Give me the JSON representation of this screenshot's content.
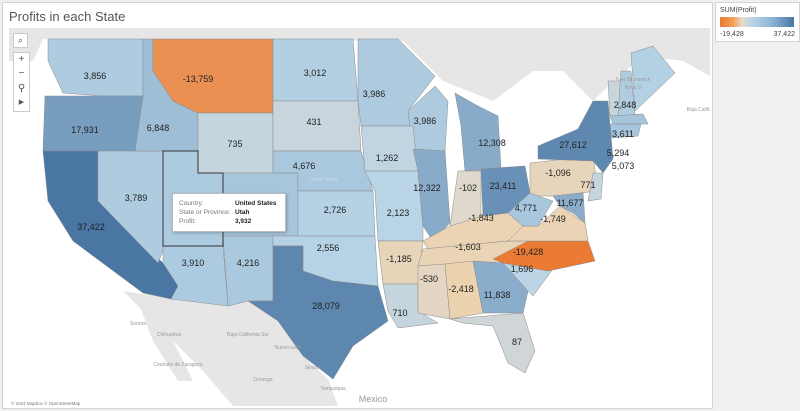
{
  "title": "Profits in each State",
  "legend": {
    "title": "SUM(Profit)",
    "min_label": "-19,428",
    "max_label": "37,422",
    "min": -19428,
    "max": 37422,
    "colors": {
      "negative": "#ea7a34",
      "neutral": "#dcd9d3",
      "positive": "#4a76a4"
    }
  },
  "toolbar": {
    "search_icon": "search-icon",
    "zoom_in": "+",
    "zoom_out": "−",
    "pin_icon": "pin-icon",
    "arrow_icon": "play-arrow-icon"
  },
  "tooltip": {
    "rows": [
      {
        "key": "Country:",
        "value": "United States"
      },
      {
        "key": "State or Province:",
        "value": "Utah"
      },
      {
        "key": "Profit:",
        "value": "3,932"
      }
    ]
  },
  "basemap_labels": [
    "New Brunswick",
    "Nova S",
    "Baja California",
    "Sonora",
    "Chihuahua",
    "Baja California Sur",
    "Coahuila de Zaragoza",
    "Nuevo León",
    "Sinaloa",
    "Durango",
    "Tamaulipas",
    "Mexico",
    "United States"
  ],
  "attribution": "© 2024 Mapbox © OpenStreetMap",
  "map": {
    "states": [
      {
        "state": "Washington",
        "profit": 3856,
        "label": "3,856"
      },
      {
        "state": "Oregon",
        "profit": 17931,
        "label": "17,931"
      },
      {
        "state": "California",
        "profit": 37422,
        "label": "37,422"
      },
      {
        "state": "Nevada",
        "profit": 3789,
        "label": "3,789"
      },
      {
        "state": "Idaho",
        "profit": 6848,
        "label": "6,848"
      },
      {
        "state": "Montana",
        "profit": -13759,
        "label": "-13,759"
      },
      {
        "state": "Wyoming",
        "profit": 735,
        "label": "735"
      },
      {
        "state": "Utah",
        "profit": 3932,
        "label": ""
      },
      {
        "state": "Colorado",
        "profit": 5000,
        "label": ""
      },
      {
        "state": "Arizona",
        "profit": 3910,
        "label": "3,910"
      },
      {
        "state": "New Mexico",
        "profit": 4216,
        "label": "4,216"
      },
      {
        "state": "North Dakota",
        "profit": 3012,
        "label": "3,012"
      },
      {
        "state": "South Dakota",
        "profit": 431,
        "label": "431"
      },
      {
        "state": "Nebraska",
        "profit": 4676,
        "label": "4,676"
      },
      {
        "state": "Kansas",
        "profit": 2726,
        "label": "2,726"
      },
      {
        "state": "Oklahoma",
        "profit": 2556,
        "label": "2,556"
      },
      {
        "state": "Texas",
        "profit": 28079,
        "label": "28,079"
      },
      {
        "state": "Minnesota",
        "profit": 3986,
        "label": "3,986"
      },
      {
        "state": "Wisconsin",
        "profit": 3986,
        "label": "3,986"
      },
      {
        "state": "Iowa",
        "profit": 1262,
        "label": "1,262"
      },
      {
        "state": "Missouri",
        "profit": 2123,
        "label": "2,123"
      },
      {
        "state": "Arkansas",
        "profit": -1185,
        "label": "-1,185"
      },
      {
        "state": "Louisiana",
        "profit": 710,
        "label": "710"
      },
      {
        "state": "Illinois",
        "profit": 12322,
        "label": "12,322"
      },
      {
        "state": "Michigan",
        "profit": 12308,
        "label": "12,308"
      },
      {
        "state": "Indiana",
        "profit": -102,
        "label": "-102"
      },
      {
        "state": "Ohio",
        "profit": 23411,
        "label": "23,411"
      },
      {
        "state": "Kentucky",
        "profit": -1843,
        "label": "-1,843"
      },
      {
        "state": "Tennessee",
        "profit": -1603,
        "label": "-1,603"
      },
      {
        "state": "Mississippi",
        "profit": -530,
        "label": "-530"
      },
      {
        "state": "Alabama",
        "profit": -2418,
        "label": "-2,418"
      },
      {
        "state": "Georgia",
        "profit": 11838,
        "label": "11,838"
      },
      {
        "state": "Florida",
        "profit": 87,
        "label": "87"
      },
      {
        "state": "South Carolina",
        "profit": 1696,
        "label": "1,696"
      },
      {
        "state": "North Carolina",
        "profit": -19428,
        "label": "-19,428"
      },
      {
        "state": "Virginia",
        "profit": -1749,
        "label": "-1,749"
      },
      {
        "state": "West Virginia",
        "profit": 4771,
        "label": "4,771"
      },
      {
        "state": "Maryland",
        "profit": 11677,
        "label": "11,677"
      },
      {
        "state": "Pennsylvania",
        "profit": -1096,
        "label": "-1,096"
      },
      {
        "state": "New Jersey",
        "profit": 771,
        "label": "771"
      },
      {
        "state": "New York",
        "profit": 27612,
        "label": "27,612"
      },
      {
        "state": "Vermont",
        "profit": 500,
        "label": ""
      },
      {
        "state": "New Hampshire",
        "profit": 3611,
        "label": "3,611"
      },
      {
        "state": "Massachusetts",
        "profit": 5294,
        "label": "5,294"
      },
      {
        "state": "Connecticut",
        "profit": 5073,
        "label": "5,073"
      },
      {
        "state": "Maine",
        "profit": 2848,
        "label": "2,848"
      }
    ]
  }
}
